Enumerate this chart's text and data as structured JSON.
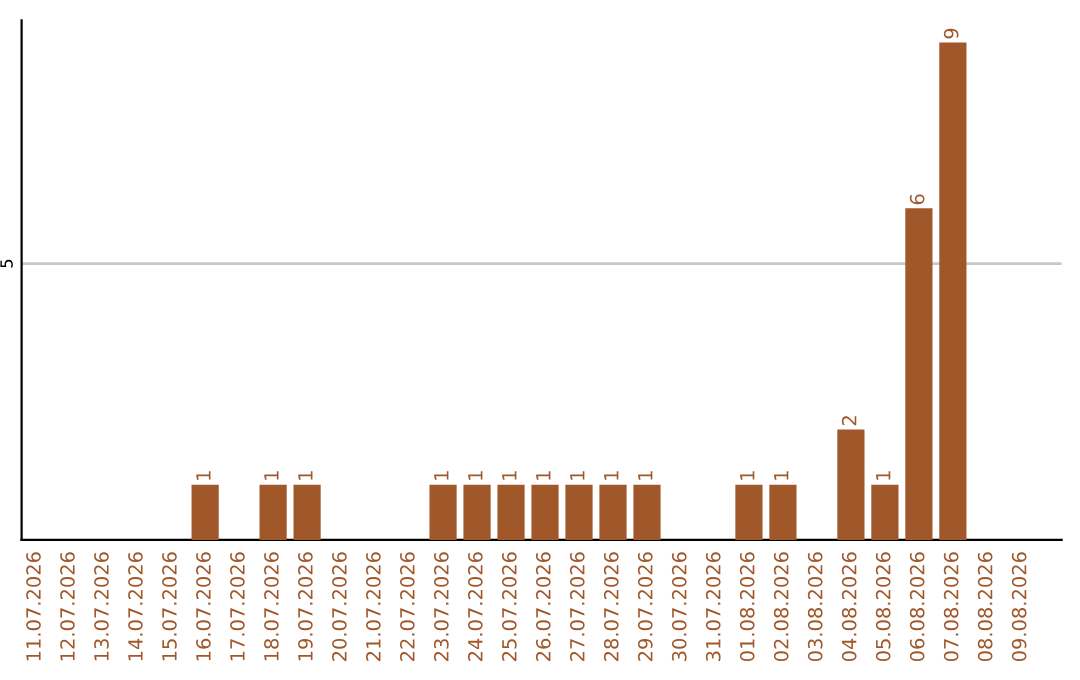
{
  "chart_data": {
    "type": "bar",
    "categories": [
      "11.07.2026",
      "12.07.2026",
      "13.07.2026",
      "14.07.2026",
      "15.07.2026",
      "16.07.2026",
      "17.07.2026",
      "18.07.2026",
      "19.07.2026",
      "20.07.2026",
      "21.07.2026",
      "22.07.2026",
      "23.07.2026",
      "24.07.2026",
      "25.07.2026",
      "26.07.2026",
      "27.07.2026",
      "28.07.2026",
      "29.07.2026",
      "30.07.2026",
      "31.07.2026",
      "01.08.2026",
      "02.08.2026",
      "03.08.2026",
      "04.08.2026",
      "05.08.2026",
      "06.08.2026",
      "07.08.2026",
      "08.08.2026",
      "09.08.2026"
    ],
    "values": [
      0,
      0,
      0,
      0,
      0,
      1,
      0,
      1,
      1,
      0,
      0,
      0,
      1,
      1,
      1,
      1,
      1,
      1,
      1,
      0,
      0,
      1,
      1,
      0,
      2,
      1,
      6,
      9,
      0,
      0
    ],
    "value_labels": [
      null,
      null,
      null,
      null,
      null,
      "1",
      null,
      "1",
      "1",
      null,
      null,
      null,
      "1",
      "1",
      "1",
      "1",
      "1",
      "1",
      "1",
      null,
      null,
      "1",
      "1",
      null,
      "2",
      "1",
      "6",
      "9",
      null,
      null
    ],
    "color": "#a0572a",
    "ylim": [
      0,
      9.4
    ],
    "yticks": [
      5
    ],
    "grid": "y"
  }
}
